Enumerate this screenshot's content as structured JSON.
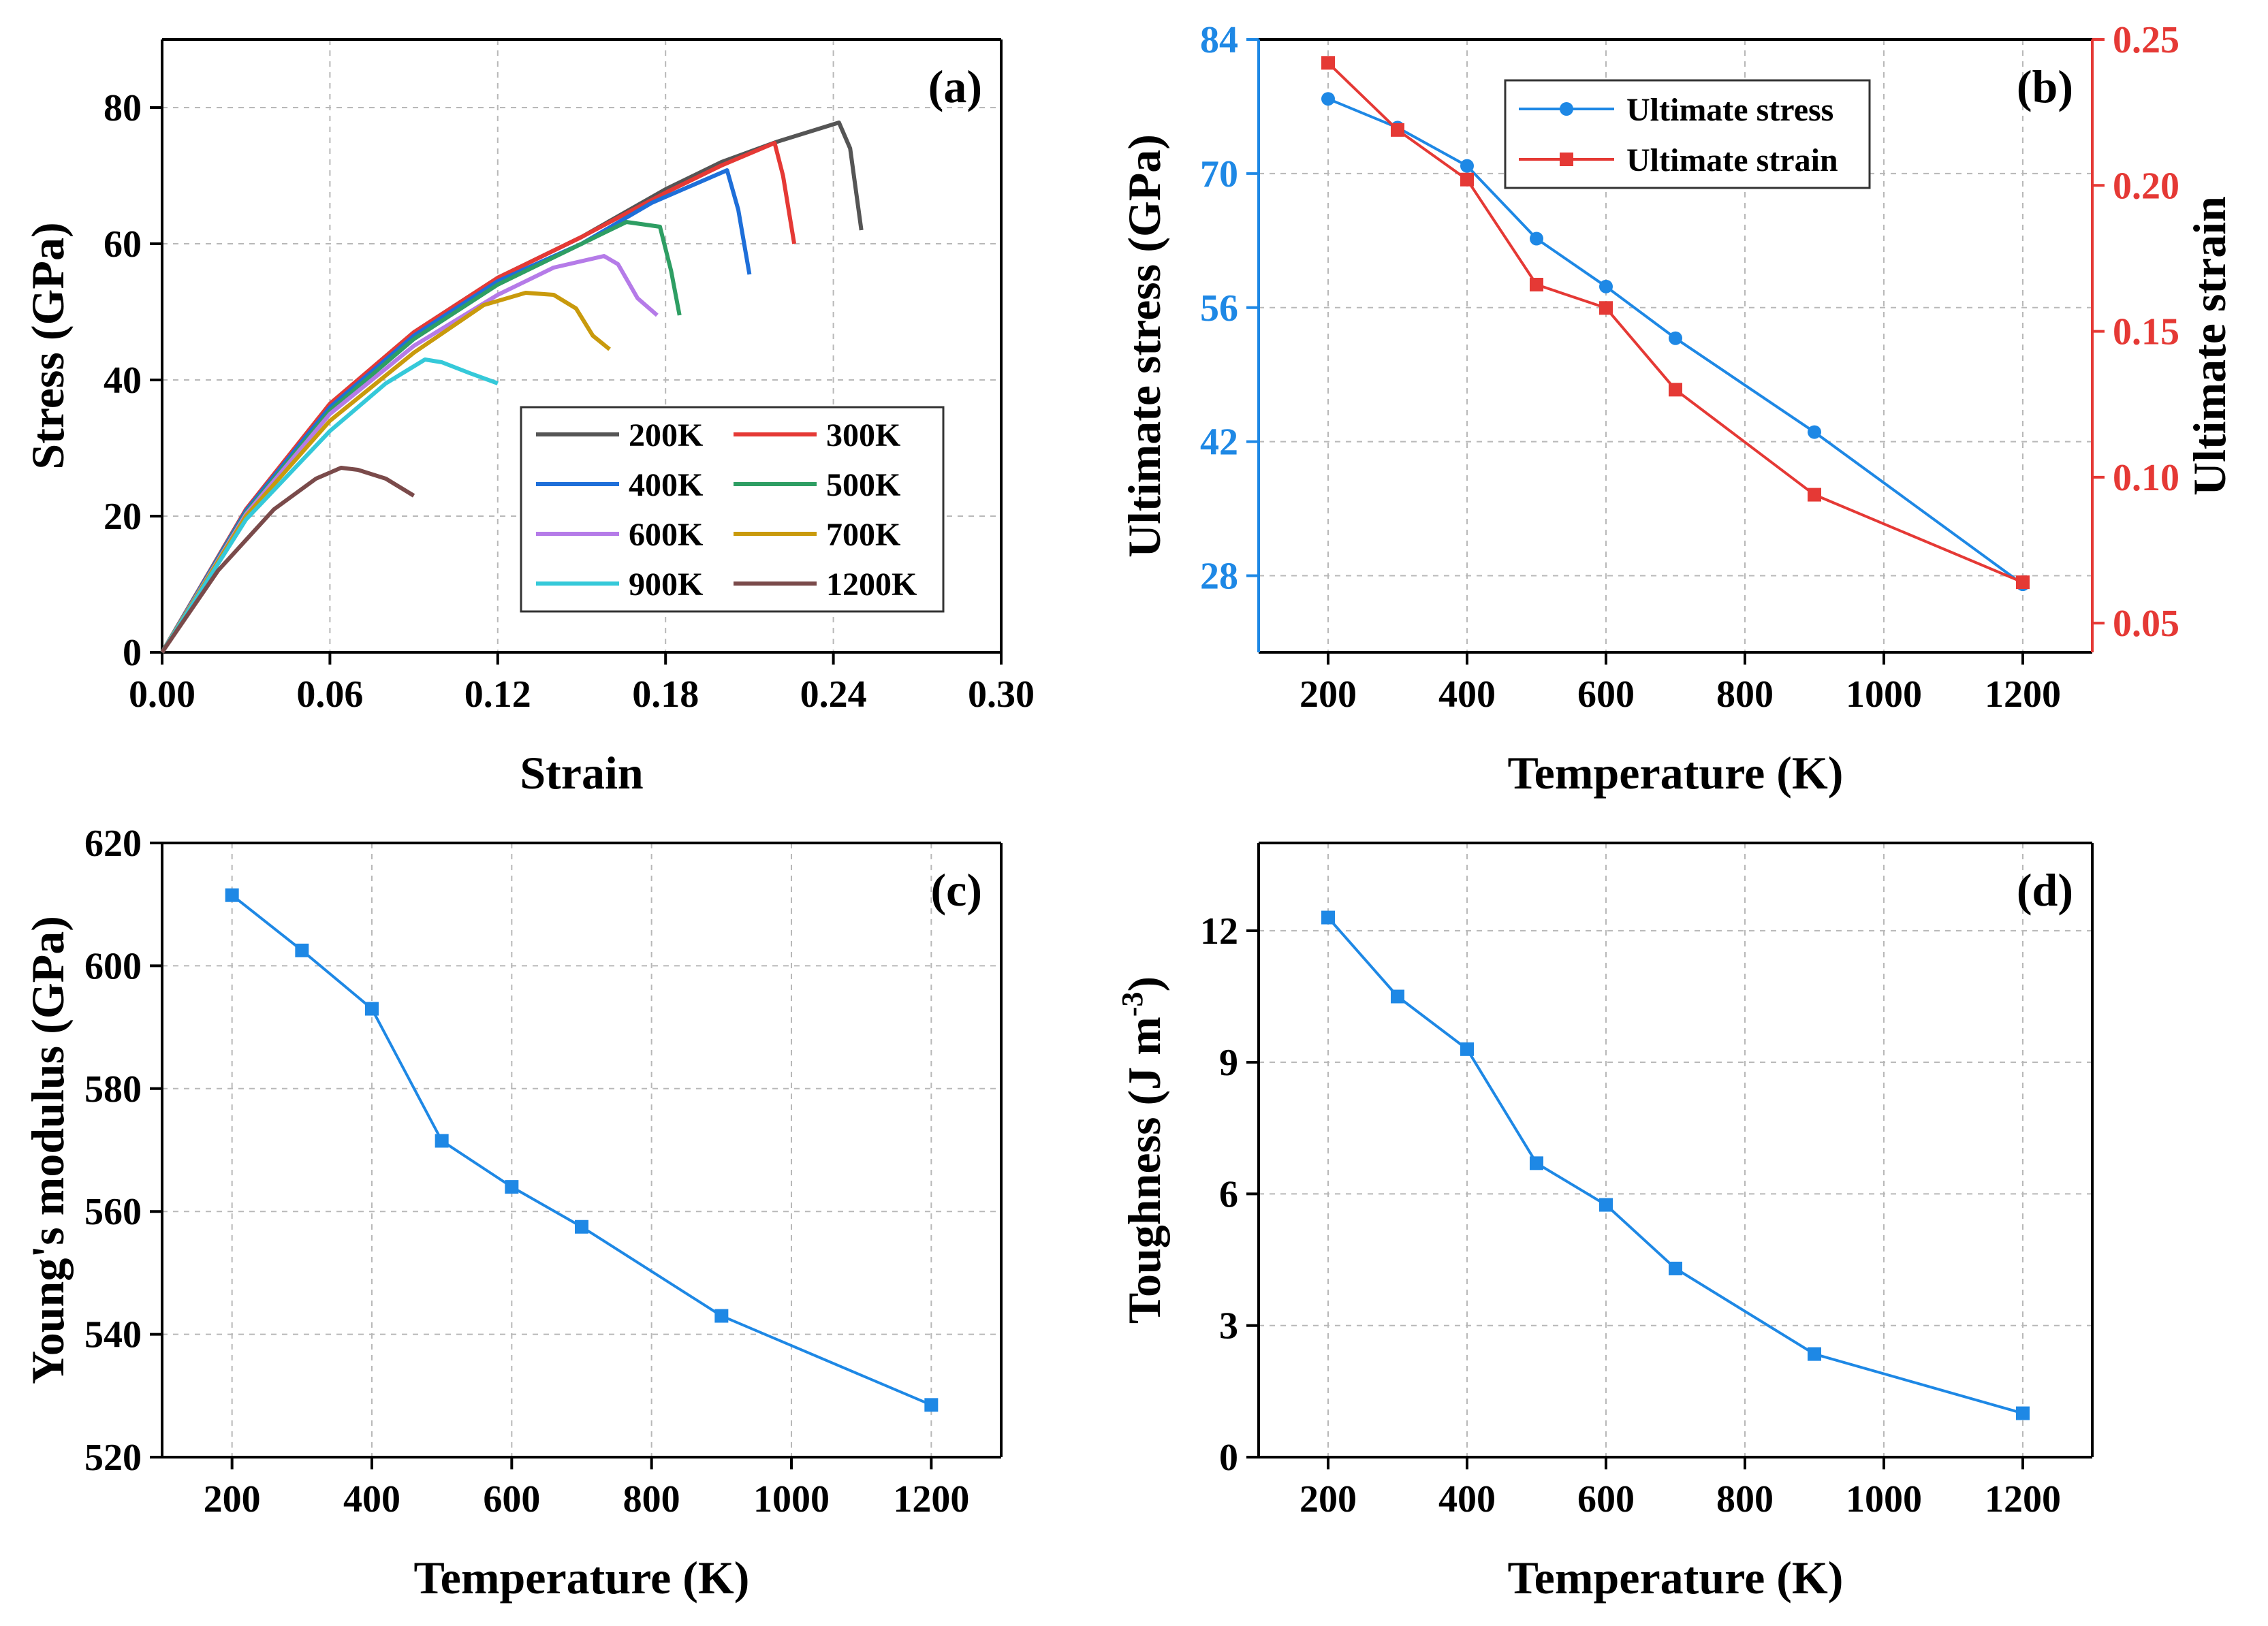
{
  "figure": {
    "colors": {
      "primary": "#1e88e5",
      "secondary": "#e53935"
    }
  },
  "chart_data": [
    {
      "type": "line",
      "panel_label": "(a)",
      "xlabel": "Strain",
      "ylabel": "Stress (GPa)",
      "xlim": [
        0,
        0.3
      ],
      "ylim": [
        0,
        90
      ],
      "xticks": [
        0.0,
        0.06,
        0.12,
        0.18,
        0.24,
        0.3
      ],
      "xtick_labels": [
        "0.00",
        "0.06",
        "0.12",
        "0.18",
        "0.24",
        "0.30"
      ],
      "yticks": [
        0,
        20,
        40,
        60,
        80
      ],
      "ytick_labels": [
        "0",
        "20",
        "40",
        "60",
        "80"
      ],
      "grid": true,
      "legend_position": "lower-right",
      "series": [
        {
          "name": "200K",
          "color": "#555555",
          "points": [
            [
              0,
              0
            ],
            [
              0.03,
              21
            ],
            [
              0.06,
              36.5
            ],
            [
              0.09,
              47
            ],
            [
              0.12,
              55
            ],
            [
              0.15,
              61
            ],
            [
              0.18,
              68
            ],
            [
              0.2,
              72
            ],
            [
              0.22,
              75
            ],
            [
              0.242,
              77.8
            ],
            [
              0.246,
              74
            ],
            [
              0.25,
              62
            ]
          ]
        },
        {
          "name": "300K",
          "color": "#e53935",
          "points": [
            [
              0,
              0
            ],
            [
              0.03,
              21
            ],
            [
              0.06,
              36.5
            ],
            [
              0.09,
              47
            ],
            [
              0.12,
              55
            ],
            [
              0.15,
              61
            ],
            [
              0.18,
              67.5
            ],
            [
              0.2,
              71.5
            ],
            [
              0.219,
              74.8
            ],
            [
              0.222,
              70
            ],
            [
              0.226,
              60
            ]
          ]
        },
        {
          "name": "400K",
          "color": "#1e6fd9",
          "points": [
            [
              0,
              0
            ],
            [
              0.03,
              20.8
            ],
            [
              0.06,
              36
            ],
            [
              0.09,
              46.5
            ],
            [
              0.12,
              54.5
            ],
            [
              0.15,
              60
            ],
            [
              0.175,
              66
            ],
            [
              0.202,
              70.8
            ],
            [
              0.206,
              65
            ],
            [
              0.21,
              55.5
            ]
          ]
        },
        {
          "name": "500K",
          "color": "#2e9e63",
          "points": [
            [
              0,
              0
            ],
            [
              0.03,
              20.5
            ],
            [
              0.06,
              35.5
            ],
            [
              0.09,
              46
            ],
            [
              0.12,
              54
            ],
            [
              0.15,
              60
            ],
            [
              0.166,
              63.2
            ],
            [
              0.178,
              62.5
            ],
            [
              0.182,
              56
            ],
            [
              0.185,
              49.5
            ]
          ]
        },
        {
          "name": "600K",
          "color": "#b57be8",
          "points": [
            [
              0,
              0
            ],
            [
              0.03,
              20.3
            ],
            [
              0.06,
              35
            ],
            [
              0.09,
              45
            ],
            [
              0.12,
              52.5
            ],
            [
              0.14,
              56.5
            ],
            [
              0.158,
              58.2
            ],
            [
              0.163,
              57
            ],
            [
              0.17,
              52
            ],
            [
              0.177,
              49.5
            ]
          ]
        },
        {
          "name": "700K",
          "color": "#c99a0c",
          "points": [
            [
              0,
              0
            ],
            [
              0.03,
              20
            ],
            [
              0.06,
              34
            ],
            [
              0.09,
              44
            ],
            [
              0.115,
              51
            ],
            [
              0.13,
              52.8
            ],
            [
              0.14,
              52.5
            ],
            [
              0.148,
              50.5
            ],
            [
              0.154,
              46.5
            ],
            [
              0.16,
              44.5
            ]
          ]
        },
        {
          "name": "900K",
          "color": "#35c9d9",
          "points": [
            [
              0,
              0
            ],
            [
              0.03,
              19.5
            ],
            [
              0.06,
              32.5
            ],
            [
              0.08,
              39.5
            ],
            [
              0.094,
              43
            ],
            [
              0.1,
              42.6
            ],
            [
              0.11,
              41
            ],
            [
              0.12,
              39.5
            ]
          ]
        },
        {
          "name": "1200K",
          "color": "#7a4a4a",
          "points": [
            [
              0,
              0
            ],
            [
              0.02,
              12
            ],
            [
              0.04,
              21
            ],
            [
              0.055,
              25.5
            ],
            [
              0.064,
              27.1
            ],
            [
              0.07,
              26.8
            ],
            [
              0.08,
              25.5
            ],
            [
              0.09,
              23
            ]
          ]
        }
      ]
    },
    {
      "type": "line",
      "panel_label": "(b)",
      "xlabel": "Temperature (K)",
      "ylabel": "Ultimate stress (GPa)",
      "y2label": "Ultimate strain",
      "xlim": [
        100,
        1300
      ],
      "ylim": [
        20,
        84
      ],
      "y2lim": [
        0.04,
        0.25
      ],
      "xticks": [
        200,
        400,
        600,
        800,
        1000,
        1200
      ],
      "xtick_labels": [
        "200",
        "400",
        "600",
        "800",
        "1000",
        "1200"
      ],
      "yticks": [
        28,
        42,
        56,
        70,
        84
      ],
      "ytick_labels": [
        "28",
        "42",
        "56",
        "70",
        "84"
      ],
      "y2ticks": [
        0.05,
        0.1,
        0.15,
        0.2,
        0.25
      ],
      "y2tick_labels": [
        "0.05",
        "0.10",
        "0.15",
        "0.20",
        "0.25"
      ],
      "grid": true,
      "legend_position": "top-center",
      "x": [
        200,
        300,
        400,
        500,
        600,
        700,
        900,
        1200
      ],
      "series": [
        {
          "name": "Ultimate stress",
          "axis": "left",
          "color": "#1e88e5",
          "marker": "circle",
          "values": [
            77.8,
            74.8,
            70.8,
            63.2,
            58.2,
            52.8,
            43.0,
            27.1
          ]
        },
        {
          "name": "Ultimate strain",
          "axis": "right",
          "color": "#e53935",
          "marker": "square",
          "values": [
            0.242,
            0.219,
            0.202,
            0.166,
            0.158,
            0.13,
            0.094,
            0.064
          ]
        }
      ]
    },
    {
      "type": "line",
      "panel_label": "(c)",
      "xlabel": "Temperature (K)",
      "ylabel": "Young's modulus (GPa)",
      "xlim": [
        100,
        1300
      ],
      "ylim": [
        520,
        620
      ],
      "xticks": [
        200,
        400,
        600,
        800,
        1000,
        1200
      ],
      "xtick_labels": [
        "200",
        "400",
        "600",
        "800",
        "1000",
        "1200"
      ],
      "yticks": [
        520,
        540,
        560,
        580,
        600,
        620
      ],
      "ytick_labels": [
        "520",
        "540",
        "560",
        "580",
        "600",
        "620"
      ],
      "grid": true,
      "x": [
        200,
        300,
        400,
        500,
        600,
        700,
        900,
        1200
      ],
      "series": [
        {
          "color": "#1e88e5",
          "marker": "square",
          "values": [
            611.5,
            602.5,
            593.0,
            571.5,
            564.0,
            557.5,
            543.0,
            528.5
          ]
        }
      ]
    },
    {
      "type": "line",
      "panel_label": "(d)",
      "xlabel": "Temperature (K)",
      "ylabel": "Toughness (J m",
      "ylabel_sup": "-3",
      "ylabel_end": ")",
      "xlim": [
        100,
        1300
      ],
      "ylim": [
        0,
        14
      ],
      "xticks": [
        200,
        400,
        600,
        800,
        1000,
        1200
      ],
      "xtick_labels": [
        "200",
        "400",
        "600",
        "800",
        "1000",
        "1200"
      ],
      "yticks": [
        0,
        3,
        6,
        9,
        12
      ],
      "ytick_labels": [
        "0",
        "3",
        "6",
        "9",
        "12"
      ],
      "grid": true,
      "x": [
        200,
        300,
        400,
        500,
        600,
        700,
        900,
        1200
      ],
      "series": [
        {
          "color": "#1e88e5",
          "marker": "square",
          "values": [
            12.3,
            10.5,
            9.3,
            6.7,
            5.75,
            4.3,
            2.35,
            1.0
          ]
        }
      ]
    }
  ]
}
